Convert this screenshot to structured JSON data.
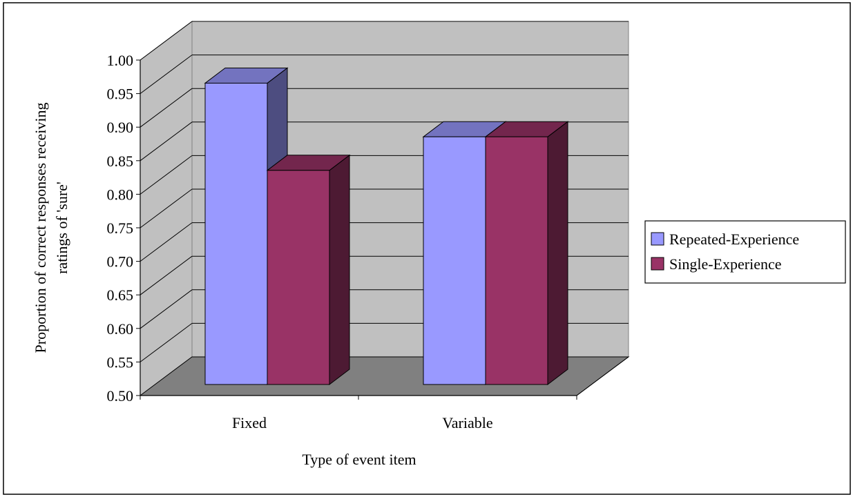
{
  "chart_data": {
    "type": "bar",
    "title": "",
    "xlabel": "Type of event item",
    "ylabel_lines": [
      "Proportion of correct responses receiving",
      "ratings of 'sure'"
    ],
    "categories": [
      "Fixed",
      "Variable"
    ],
    "ylim": [
      0.5,
      1.0
    ],
    "yticks": [
      "0.50",
      "0.55",
      "0.60",
      "0.65",
      "0.70",
      "0.75",
      "0.80",
      "0.85",
      "0.90",
      "0.95",
      "1.00"
    ],
    "grid": true,
    "legend_position": "right",
    "series": [
      {
        "name": "Repeated-Experience",
        "values": [
          0.98,
          0.9
        ]
      },
      {
        "name": "Single-Experience",
        "values": [
          0.85,
          0.9
        ]
      }
    ],
    "colors": {
      "wall": "#c0c0c0",
      "floor": "#808080",
      "series": [
        "#9999ff",
        "#993366"
      ],
      "series_top": [
        "#7373bf",
        "#73264d"
      ],
      "series_side": [
        "#4d4d80",
        "#4d1a33"
      ]
    }
  }
}
